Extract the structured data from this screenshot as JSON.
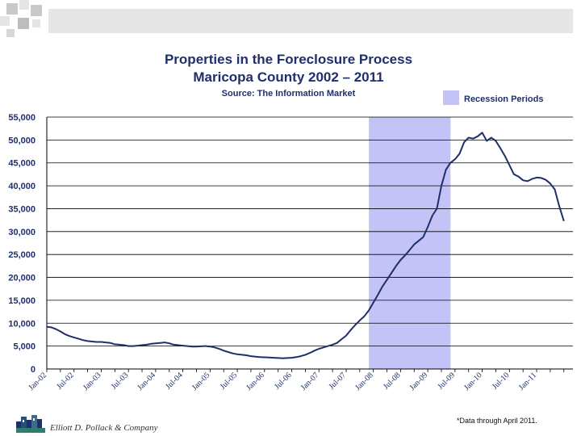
{
  "chart_data": {
    "type": "line",
    "title": "Properties in the Foreclosure Process",
    "subtitle": "Maricopa County 2002 – 2011",
    "source": "Source: The Information Market",
    "legend": {
      "label": "Recession Periods",
      "color": "#c3c3f7",
      "position": "top-right"
    },
    "ylim": [
      0,
      55000
    ],
    "yticks": [
      0,
      5000,
      10000,
      15000,
      20000,
      25000,
      30000,
      35000,
      40000,
      45000,
      50000,
      55000
    ],
    "ytick_labels": [
      "0",
      "5,000",
      "10,000",
      "15,000",
      "20,000",
      "25,000",
      "30,000",
      "35,000",
      "40,000",
      "45,000",
      "50,000",
      "55,000"
    ],
    "xtick_labels": [
      "Jan-02",
      "Jul-02",
      "Jan-03",
      "Jul-03",
      "Jan-04",
      "Jul-04",
      "Jan-05",
      "Jul-05",
      "Jan-06",
      "Jul-06",
      "Jan-07",
      "Jul-07",
      "Jan-08",
      "Jul-08",
      "Jan-09",
      "Jul-09",
      "Jan-10",
      "Jul-10",
      "Jan-11"
    ],
    "x_range_months": [
      0,
      116
    ],
    "recession": {
      "start": "Dec-07",
      "end": "Jun-09",
      "start_month": 71,
      "end_month": 89
    },
    "series": [
      {
        "color": "#1f2f6b",
        "points": [
          [
            0,
            9200
          ],
          [
            1,
            9100
          ],
          [
            2,
            8700
          ],
          [
            3,
            8200
          ],
          [
            4,
            7600
          ],
          [
            5,
            7200
          ],
          [
            6,
            6900
          ],
          [
            7,
            6600
          ],
          [
            8,
            6300
          ],
          [
            9,
            6100
          ],
          [
            10,
            6000
          ],
          [
            11,
            5900
          ],
          [
            12,
            5900
          ],
          [
            13,
            5800
          ],
          [
            14,
            5700
          ],
          [
            15,
            5400
          ],
          [
            16,
            5300
          ],
          [
            17,
            5200
          ],
          [
            18,
            5000
          ],
          [
            19,
            5000
          ],
          [
            20,
            5100
          ],
          [
            21,
            5200
          ],
          [
            22,
            5300
          ],
          [
            23,
            5500
          ],
          [
            24,
            5600
          ],
          [
            25,
            5700
          ],
          [
            26,
            5800
          ],
          [
            27,
            5600
          ],
          [
            28,
            5300
          ],
          [
            29,
            5200
          ],
          [
            30,
            5100
          ],
          [
            31,
            5000
          ],
          [
            32,
            4900
          ],
          [
            33,
            4900
          ],
          [
            34,
            4950
          ],
          [
            35,
            5000
          ],
          [
            36,
            4900
          ],
          [
            37,
            4700
          ],
          [
            38,
            4400
          ],
          [
            39,
            4000
          ],
          [
            40,
            3700
          ],
          [
            41,
            3400
          ],
          [
            42,
            3200
          ],
          [
            43,
            3100
          ],
          [
            44,
            3000
          ],
          [
            45,
            2800
          ],
          [
            46,
            2700
          ],
          [
            47,
            2600
          ],
          [
            48,
            2550
          ],
          [
            49,
            2500
          ],
          [
            50,
            2450
          ],
          [
            51,
            2400
          ],
          [
            52,
            2350
          ],
          [
            53,
            2400
          ],
          [
            54,
            2450
          ],
          [
            55,
            2600
          ],
          [
            56,
            2800
          ],
          [
            57,
            3100
          ],
          [
            58,
            3500
          ],
          [
            59,
            4000
          ],
          [
            60,
            4400
          ],
          [
            61,
            4700
          ],
          [
            62,
            5000
          ],
          [
            63,
            5300
          ],
          [
            64,
            5700
          ],
          [
            65,
            6500
          ],
          [
            66,
            7300
          ],
          [
            67,
            8500
          ],
          [
            68,
            9600
          ],
          [
            69,
            10600
          ],
          [
            70,
            11500
          ],
          [
            71,
            12800
          ],
          [
            72,
            14500
          ],
          [
            73,
            16200
          ],
          [
            74,
            18000
          ],
          [
            75,
            19500
          ],
          [
            76,
            21000
          ],
          [
            77,
            22500
          ],
          [
            78,
            23800
          ],
          [
            79,
            24800
          ],
          [
            80,
            26000
          ],
          [
            81,
            27200
          ],
          [
            82,
            28000
          ],
          [
            83,
            28800
          ],
          [
            84,
            31000
          ],
          [
            85,
            33500
          ],
          [
            86,
            35000
          ],
          [
            87,
            40000
          ],
          [
            88,
            43500
          ],
          [
            89,
            45000
          ],
          [
            90,
            45800
          ],
          [
            91,
            47000
          ],
          [
            92,
            49500
          ],
          [
            93,
            50500
          ],
          [
            94,
            50300
          ],
          [
            95,
            50800
          ],
          [
            96,
            51600
          ],
          [
            97,
            49800
          ],
          [
            98,
            50500
          ],
          [
            99,
            49800
          ],
          [
            100,
            48200
          ],
          [
            101,
            46500
          ],
          [
            102,
            44500
          ],
          [
            103,
            42500
          ],
          [
            104,
            42000
          ],
          [
            105,
            41200
          ],
          [
            106,
            41000
          ],
          [
            107,
            41500
          ],
          [
            108,
            41800
          ],
          [
            109,
            41700
          ],
          [
            110,
            41300
          ],
          [
            111,
            40500
          ],
          [
            112,
            39200
          ],
          [
            113,
            35500
          ],
          [
            114,
            32300
          ]
        ]
      }
    ]
  },
  "footer": {
    "company": "Elliott D. Pollack & Company",
    "footnote": "*Data through April 2011."
  }
}
